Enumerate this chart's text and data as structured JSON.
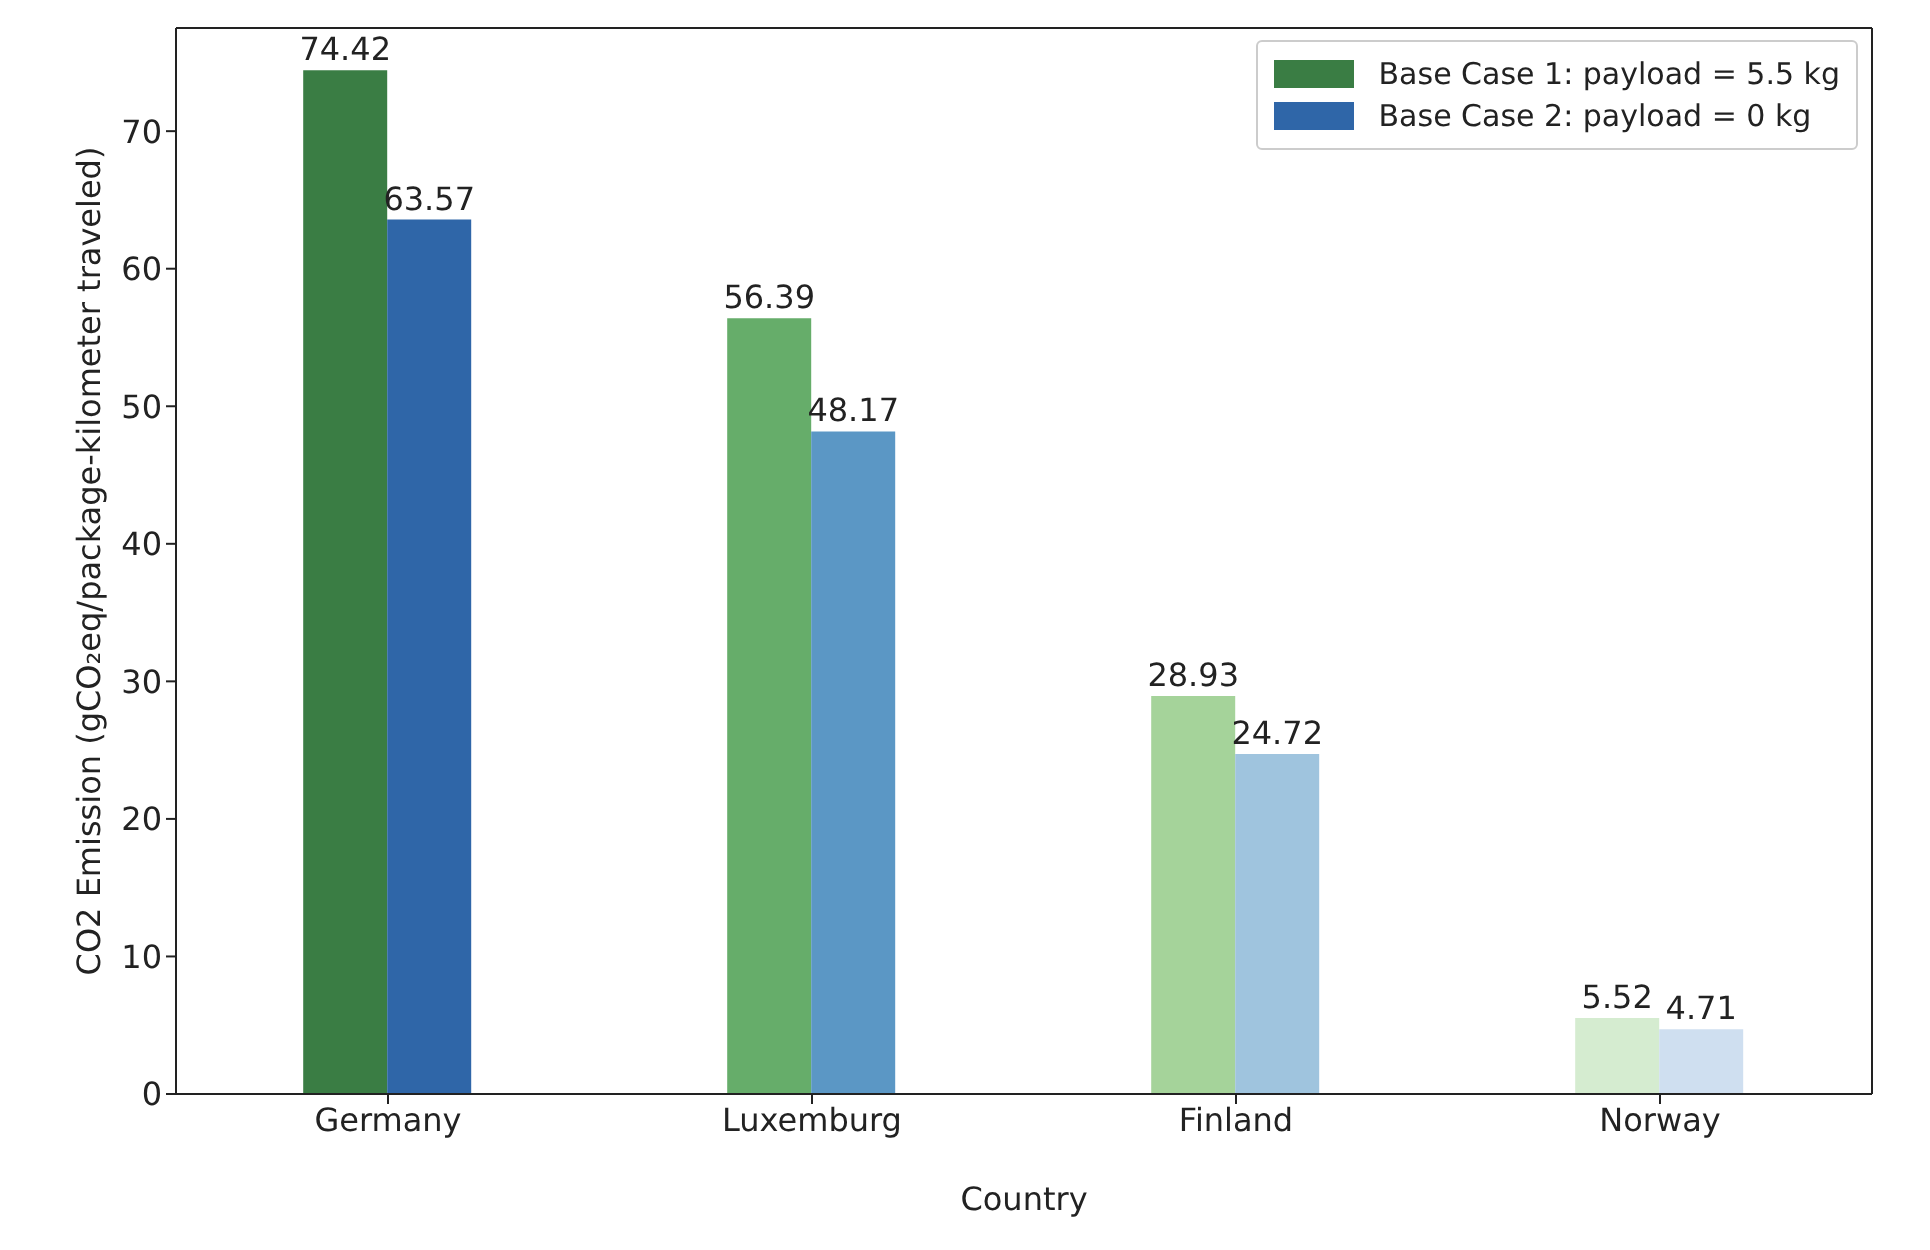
{
  "chart_data": {
    "type": "bar",
    "xlabel": "Country",
    "ylabel": "CO2 Emission  (gCO₂eq/package-kilometer traveled)",
    "categories": [
      "Germany",
      "Luxemburg",
      "Finland",
      "Norway"
    ],
    "series": [
      {
        "name": "Base Case 1: payload = 5.5 kg",
        "color": "#3a7d44",
        "colors": [
          "#3a7d44",
          "#66ad6a",
          "#a5d39a",
          "#d5ecd0"
        ],
        "values": [
          74.42,
          56.39,
          28.93,
          5.52
        ]
      },
      {
        "name": "Base Case 2: payload = 0 kg",
        "color": "#2f66a8",
        "colors": [
          "#2f66a8",
          "#5b97c5",
          "#9fc4de",
          "#cfdff0"
        ],
        "values": [
          63.57,
          48.17,
          24.72,
          4.71
        ]
      }
    ],
    "ylim": [
      0,
      77.5
    ],
    "yticks": [
      0,
      10,
      20,
      30,
      40,
      50,
      60,
      70
    ],
    "data_labels": true,
    "legend": "top right",
    "grid": false
  }
}
